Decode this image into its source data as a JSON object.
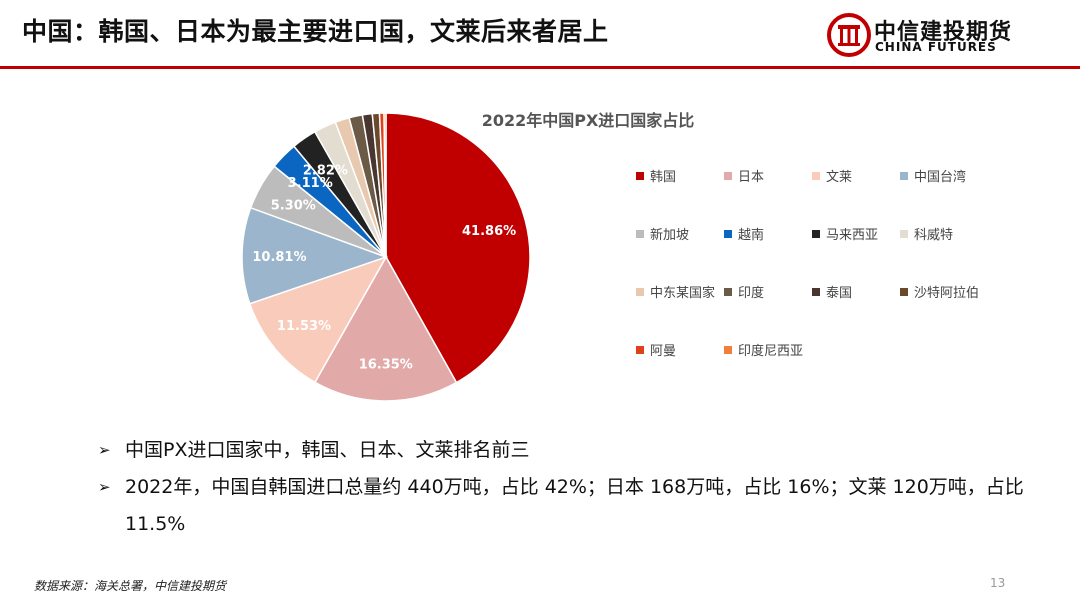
{
  "header": {
    "title": "中国：韩国、日本为最主要进口国，文莱后来者居上"
  },
  "logo": {
    "name_cn": "中信建投期货",
    "name_en": "CHINA FUTURES",
    "icon": "citic-logo-icon",
    "color": "#c00000"
  },
  "chart_data": {
    "type": "pie",
    "title": "2022年中国PX进口国家占比",
    "legend_position": "right",
    "slices": [
      {
        "label": "韩国",
        "value": 41.86,
        "display": "41.86%",
        "color": "#c00000"
      },
      {
        "label": "日本",
        "value": 16.35,
        "display": "16.35%",
        "color": "#e2a9a9"
      },
      {
        "label": "文莱",
        "value": 11.53,
        "display": "11.53%",
        "color": "#f8cbba"
      },
      {
        "label": "中国台湾",
        "value": 10.81,
        "display": "10.81%",
        "color": "#9ab5cc"
      },
      {
        "label": "新加坡",
        "value": 5.3,
        "display": "5.30%",
        "color": "#bcbcbc"
      },
      {
        "label": "越南",
        "value": 3.11,
        "display": "3.11%",
        "color": "#0b66c2"
      },
      {
        "label": "马来西亚",
        "value": 2.82,
        "display": "2.82%",
        "color": "#222222"
      },
      {
        "label": "科威特",
        "value": 2.5,
        "display": "",
        "color": "#e3ddd1"
      },
      {
        "label": "中东某国家",
        "value": 1.6,
        "display": "",
        "color": "#e8c8ae"
      },
      {
        "label": "印度",
        "value": 1.5,
        "display": "",
        "color": "#6b5a46"
      },
      {
        "label": "泰国",
        "value": 1.1,
        "display": "",
        "color": "#4a3631"
      },
      {
        "label": "沙特阿拉伯",
        "value": 0.8,
        "display": "",
        "color": "#6a4a2a"
      },
      {
        "label": "阿曼",
        "value": 0.5,
        "display": "",
        "color": "#e0401a"
      },
      {
        "label": "印度尼西亚",
        "value": 0.22,
        "display": "",
        "color": "#ef7f3a"
      }
    ]
  },
  "bullets": [
    "中国PX进口国家中，韩国、日本、文莱排名前三",
    "2022年，中国自韩国进口总量约 440万吨，占比 42%；日本 168万吨，占比 16%；文莱 120万吨，占比 11.5%"
  ],
  "footer": {
    "source": "数据来源：海关总署，中信建投期货",
    "page_number": "13"
  }
}
